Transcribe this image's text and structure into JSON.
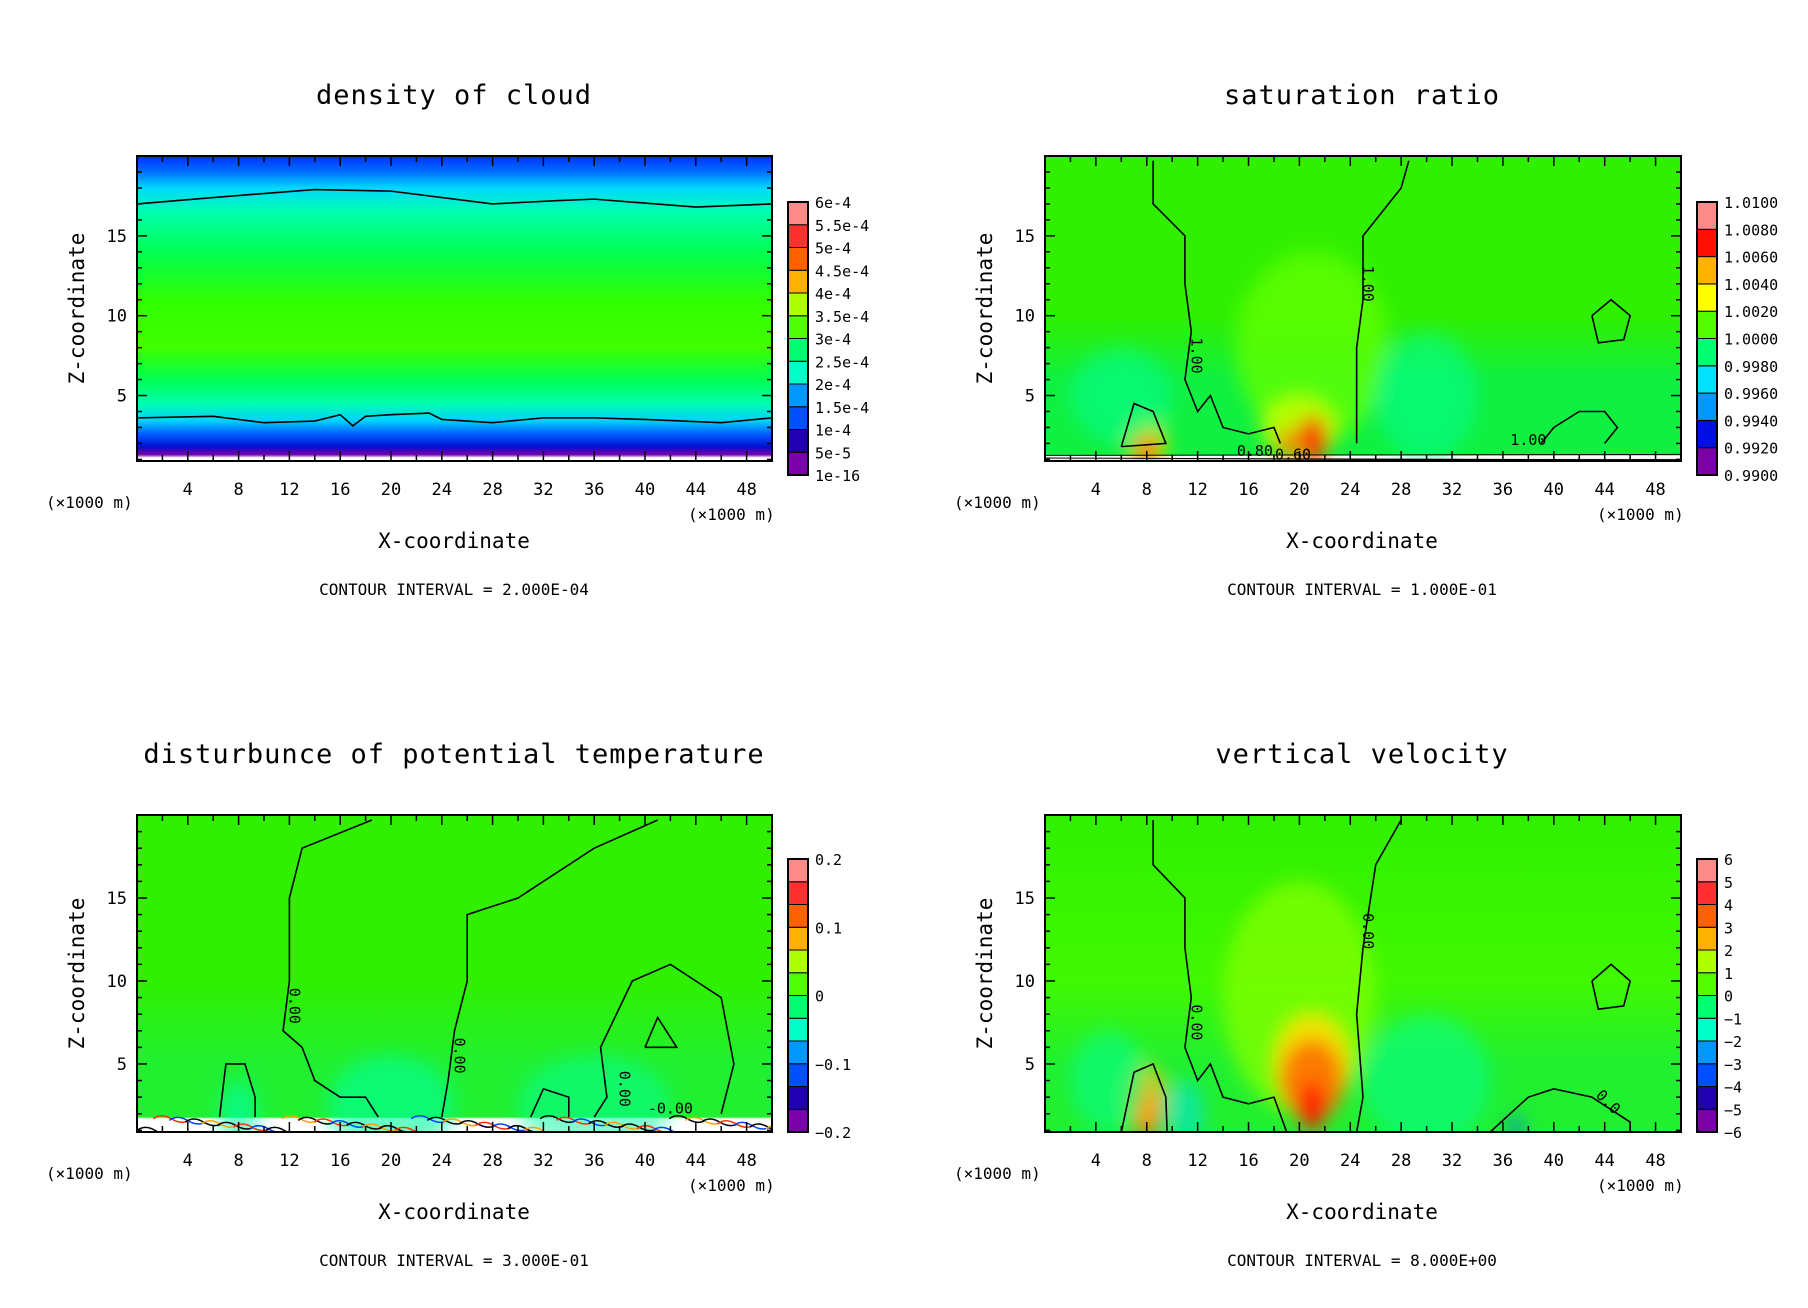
{
  "chart_data": [
    {
      "type": "heatmap",
      "title": "density of cloud",
      "xlabel": "X-coordinate",
      "ylabel": "Z-coordinate",
      "x_unit_left": "(×1000 m)",
      "x_unit_right": "(×1000 m)",
      "xlim": [
        0,
        50
      ],
      "ylim": [
        0.9,
        20
      ],
      "x_ticks": [
        "4",
        "8",
        "12",
        "16",
        "20",
        "24",
        "28",
        "32",
        "36",
        "40",
        "44",
        "48"
      ],
      "y_ticks": [
        "5",
        "10",
        "15"
      ],
      "colorbar_labels": [
        "6e-4",
        "5.5e-4",
        "5e-4",
        "4.5e-4",
        "4e-4",
        "3.5e-4",
        "3e-4",
        "2.5e-4",
        "2e-4",
        "1.5e-4",
        "1e-4",
        "5e-5",
        "1e-16"
      ],
      "contour_labels": [],
      "contour_interval": "CONTOUR INTERVAL = 2.000E-04"
    },
    {
      "type": "heatmap",
      "title": "saturation ratio",
      "xlabel": "X-coordinate",
      "ylabel": "Z-coordinate",
      "x_unit_left": "(×1000 m)",
      "x_unit_right": "(×1000 m)",
      "xlim": [
        0,
        50
      ],
      "ylim": [
        0.9,
        20
      ],
      "x_ticks": [
        "4",
        "8",
        "12",
        "16",
        "20",
        "24",
        "28",
        "32",
        "36",
        "40",
        "44",
        "48"
      ],
      "y_ticks": [
        "5",
        "10",
        "15"
      ],
      "colorbar_labels": [
        "1.0100",
        "1.0080",
        "1.0060",
        "1.0040",
        "1.0020",
        "1.0000",
        "0.9980",
        "0.9960",
        "0.9940",
        "0.9920",
        "0.9900"
      ],
      "contour_labels": [
        "1.00",
        "1.00",
        "1.00",
        "0.80",
        "0.60"
      ],
      "contour_interval": "CONTOUR INTERVAL = 1.000E-01"
    },
    {
      "type": "heatmap",
      "title": "disturbunce of potential temperature",
      "xlabel": "X-coordinate",
      "ylabel": "Z-coordinate",
      "x_unit_left": "(×1000 m)",
      "x_unit_right": "(×1000 m)",
      "xlim": [
        0,
        50
      ],
      "ylim": [
        0.9,
        20
      ],
      "x_ticks": [
        "4",
        "8",
        "12",
        "16",
        "20",
        "24",
        "28",
        "32",
        "36",
        "40",
        "44",
        "48"
      ],
      "y_ticks": [
        "5",
        "10",
        "15"
      ],
      "colorbar_labels": [
        "0.2",
        "0.1",
        "0",
        "−0.1",
        "−0.2"
      ],
      "contour_labels": [
        "0.00",
        "0.00",
        "0.00",
        "-0.00"
      ],
      "contour_interval": "CONTOUR INTERVAL = 3.000E-01"
    },
    {
      "type": "heatmap",
      "title": "vertical velocity",
      "xlabel": "X-coordinate",
      "ylabel": "Z-coordinate",
      "x_unit_left": "(×1000 m)",
      "x_unit_right": "(×1000 m)",
      "xlim": [
        0,
        50
      ],
      "ylim": [
        0.9,
        20
      ],
      "x_ticks": [
        "4",
        "8",
        "12",
        "16",
        "20",
        "24",
        "28",
        "32",
        "36",
        "40",
        "44",
        "48"
      ],
      "y_ticks": [
        "5",
        "10",
        "15"
      ],
      "colorbar_labels": [
        "6",
        "5",
        "4",
        "3",
        "2",
        "1",
        "0",
        "−1",
        "−2",
        "−3",
        "−4",
        "−5",
        "−6"
      ],
      "contour_labels": [
        "0.00",
        "0.00",
        "0.0"
      ],
      "contour_interval": "CONTOUR INTERVAL = 8.000E+00"
    }
  ]
}
